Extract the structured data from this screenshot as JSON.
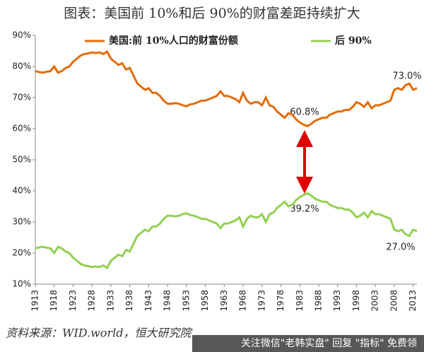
{
  "chart_data": {
    "type": "line",
    "title": "图表：美国前 10%和后 90%的财富差距持续扩大",
    "source": "资料来源：WID.world，恒大研究院",
    "watermark": "关注微信\"老韩实盘\" 回复 \"指标\" 免费领",
    "annotations": [
      "73.0%",
      "60.8%",
      "39.2%",
      "27.0%"
    ],
    "x": [
      1913,
      1914,
      1915,
      1916,
      1917,
      1918,
      1919,
      1920,
      1921,
      1922,
      1923,
      1924,
      1925,
      1926,
      1927,
      1928,
      1929,
      1930,
      1931,
      1932,
      1933,
      1934,
      1935,
      1936,
      1937,
      1938,
      1939,
      1940,
      1941,
      1942,
      1943,
      1944,
      1945,
      1946,
      1947,
      1948,
      1949,
      1950,
      1951,
      1952,
      1953,
      1954,
      1955,
      1956,
      1957,
      1958,
      1959,
      1960,
      1961,
      1962,
      1963,
      1964,
      1965,
      1966,
      1967,
      1968,
      1969,
      1970,
      1971,
      1972,
      1973,
      1974,
      1975,
      1976,
      1977,
      1978,
      1979,
      1980,
      1981,
      1982,
      1983,
      1984,
      1985,
      1986,
      1987,
      1988,
      1989,
      1990,
      1991,
      1992,
      1993,
      1994,
      1995,
      1996,
      1997,
      1998,
      1999,
      2000,
      2001,
      2002,
      2003,
      2004,
      2005,
      2006,
      2007,
      2008,
      2009,
      2010,
      2011,
      2012,
      2013,
      2014
    ],
    "series": [
      {
        "name": "美国:前 10%人口的财富份额",
        "color": "#e36c0a",
        "values": [
          78.5,
          78.2,
          78,
          78.3,
          78.5,
          80,
          78,
          78.5,
          79.5,
          80,
          81.5,
          82.5,
          83.5,
          84,
          84.2,
          84.5,
          84.3,
          84.5,
          84,
          84.8,
          82.5,
          81.5,
          80.5,
          81,
          79,
          79.5,
          77,
          74.5,
          73.5,
          72.5,
          73,
          71.5,
          71.5,
          70.5,
          69,
          68,
          68,
          68.2,
          68,
          67.5,
          67.2,
          67.8,
          68,
          68.5,
          69,
          69,
          69.5,
          70,
          70.5,
          72,
          70.5,
          70.5,
          70,
          69.5,
          68.5,
          71.5,
          69,
          68,
          68.5,
          68.5,
          67.5,
          70,
          67.5,
          67,
          65.5,
          64.5,
          63.5,
          65,
          64.5,
          63,
          62,
          61.3,
          60.8,
          61.5,
          62.5,
          63,
          63.5,
          63.5,
          64.5,
          65,
          65.5,
          65.5,
          66,
          66,
          67,
          68.5,
          68,
          67,
          68.5,
          66.5,
          67.5,
          67.5,
          68,
          68.5,
          69,
          72.5,
          73,
          72.5,
          74,
          74.5,
          72.5,
          73
        ]
      },
      {
        "name": "后 90%",
        "color": "#92d050",
        "values": [
          21.5,
          21.8,
          22,
          21.7,
          21.5,
          20,
          22,
          21.5,
          20.5,
          20,
          18.5,
          17.5,
          16.5,
          16,
          15.8,
          15.5,
          15.7,
          15.5,
          16,
          15.2,
          17.5,
          18.5,
          19.5,
          19,
          21,
          20.5,
          23,
          25.5,
          26.5,
          27.5,
          27,
          28.5,
          28.5,
          29.5,
          31,
          32,
          32,
          31.8,
          32,
          32.5,
          32.8,
          32.2,
          32,
          31.5,
          31,
          31,
          30.5,
          30,
          29.5,
          28,
          29.5,
          29.5,
          30,
          30.5,
          31.5,
          28.5,
          31,
          32,
          31.5,
          31.5,
          32.5,
          30,
          32.5,
          33,
          34.5,
          35.5,
          36.5,
          35,
          35.5,
          37,
          38,
          38.7,
          39.2,
          38.5,
          37.5,
          37,
          36.5,
          36.5,
          35.5,
          35,
          34.5,
          34.5,
          34,
          34,
          33,
          31.5,
          32,
          33,
          31.5,
          33.5,
          32.5,
          32.5,
          32,
          31.5,
          31,
          27.5,
          27,
          27.5,
          26,
          25.5,
          27.5,
          27
        ]
      }
    ],
    "xlim": [
      1913,
      2014
    ],
    "xticks": [
      1913,
      1918,
      1923,
      1928,
      1933,
      1938,
      1943,
      1948,
      1953,
      1958,
      1963,
      1968,
      1973,
      1978,
      1983,
      1988,
      1993,
      1998,
      2003,
      2008,
      2013
    ],
    "ylim": [
      10,
      90
    ],
    "yticks": [
      {
        "value": 10,
        "label": "10%"
      },
      {
        "value": 20,
        "label": "20%"
      },
      {
        "value": 30,
        "label": "30%"
      },
      {
        "value": 40,
        "label": "40%"
      },
      {
        "value": 50,
        "label": "50%"
      },
      {
        "value": 60,
        "label": "60%"
      },
      {
        "value": 70,
        "label": "70%"
      },
      {
        "value": 80,
        "label": "80%"
      },
      {
        "value": 90,
        "label": "90%"
      }
    ],
    "grid": false
  }
}
